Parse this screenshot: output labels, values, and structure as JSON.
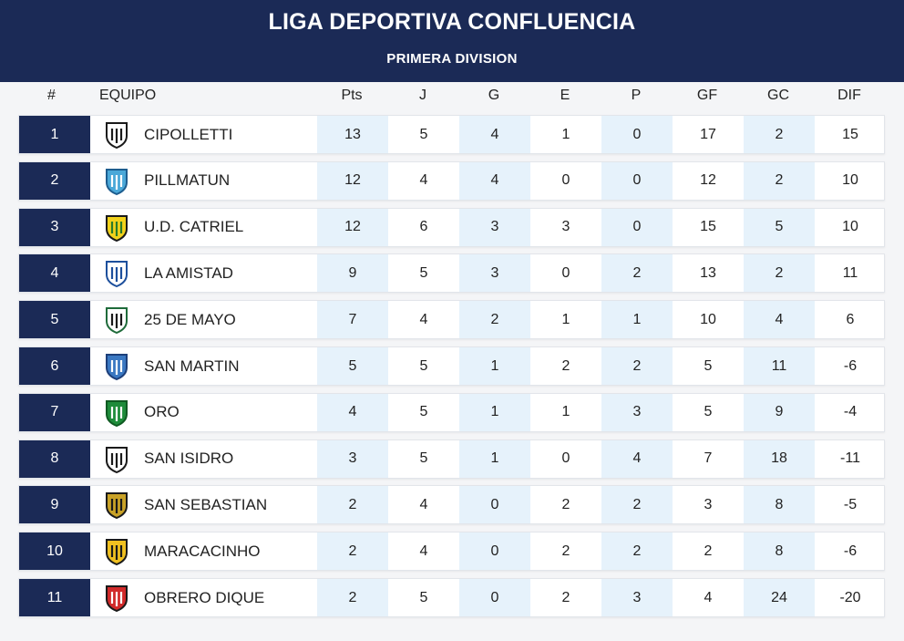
{
  "header": {
    "title": "LIGA DEPORTIVA CONFLUENCIA",
    "subtitle": "PRIMERA DIVISION"
  },
  "columns": {
    "pos": "#",
    "team": "EQUIPO",
    "pts": "Pts",
    "j": "J",
    "g": "G",
    "e": "E",
    "p": "P",
    "gf": "GF",
    "gc": "GC",
    "dif": "DIF"
  },
  "colors": {
    "navy": "#1b2a56",
    "shade": "#e6f2fb"
  },
  "rows": [
    {
      "pos": "1",
      "team": "CIPOLLETTI",
      "crest": "cipolletti-crest-icon",
      "pts": "13",
      "j": "5",
      "g": "4",
      "e": "1",
      "p": "0",
      "gf": "17",
      "gc": "2",
      "dif": "15"
    },
    {
      "pos": "2",
      "team": "PILLMATUN",
      "crest": "pillmatun-crest-icon",
      "pts": "12",
      "j": "4",
      "g": "4",
      "e": "0",
      "p": "0",
      "gf": "12",
      "gc": "2",
      "dif": "10"
    },
    {
      "pos": "3",
      "team": "U.D. CATRIEL",
      "crest": "ud-catriel-crest-icon",
      "pts": "12",
      "j": "6",
      "g": "3",
      "e": "3",
      "p": "0",
      "gf": "15",
      "gc": "5",
      "dif": "10"
    },
    {
      "pos": "4",
      "team": "LA AMISTAD",
      "crest": "la-amistad-crest-icon",
      "pts": "9",
      "j": "5",
      "g": "3",
      "e": "0",
      "p": "2",
      "gf": "13",
      "gc": "2",
      "dif": "11"
    },
    {
      "pos": "5",
      "team": "25 DE MAYO",
      "crest": "25-de-mayo-crest-icon",
      "pts": "7",
      "j": "4",
      "g": "2",
      "e": "1",
      "p": "1",
      "gf": "10",
      "gc": "4",
      "dif": "6"
    },
    {
      "pos": "6",
      "team": "SAN MARTIN",
      "crest": "san-martin-crest-icon",
      "pts": "5",
      "j": "5",
      "g": "1",
      "e": "2",
      "p": "2",
      "gf": "5",
      "gc": "11",
      "dif": "-6"
    },
    {
      "pos": "7",
      "team": "ORO",
      "crest": "oro-crest-icon",
      "pts": "4",
      "j": "5",
      "g": "1",
      "e": "1",
      "p": "3",
      "gf": "5",
      "gc": "9",
      "dif": "-4"
    },
    {
      "pos": "8",
      "team": "SAN ISIDRO",
      "crest": "san-isidro-crest-icon",
      "pts": "3",
      "j": "5",
      "g": "1",
      "e": "0",
      "p": "4",
      "gf": "7",
      "gc": "18",
      "dif": "-11"
    },
    {
      "pos": "9",
      "team": "SAN SEBASTIAN",
      "crest": "san-sebastian-crest-icon",
      "pts": "2",
      "j": "4",
      "g": "0",
      "e": "2",
      "p": "2",
      "gf": "3",
      "gc": "8",
      "dif": "-5"
    },
    {
      "pos": "10",
      "team": "MARACACINHO",
      "crest": "maracacinho-crest-icon",
      "pts": "2",
      "j": "4",
      "g": "0",
      "e": "2",
      "p": "2",
      "gf": "2",
      "gc": "8",
      "dif": "-6"
    },
    {
      "pos": "11",
      "team": "OBRERO DIQUE",
      "crest": "obrero-dique-crest-icon",
      "pts": "2",
      "j": "5",
      "g": "0",
      "e": "2",
      "p": "3",
      "gf": "4",
      "gc": "24",
      "dif": "-20"
    }
  ]
}
